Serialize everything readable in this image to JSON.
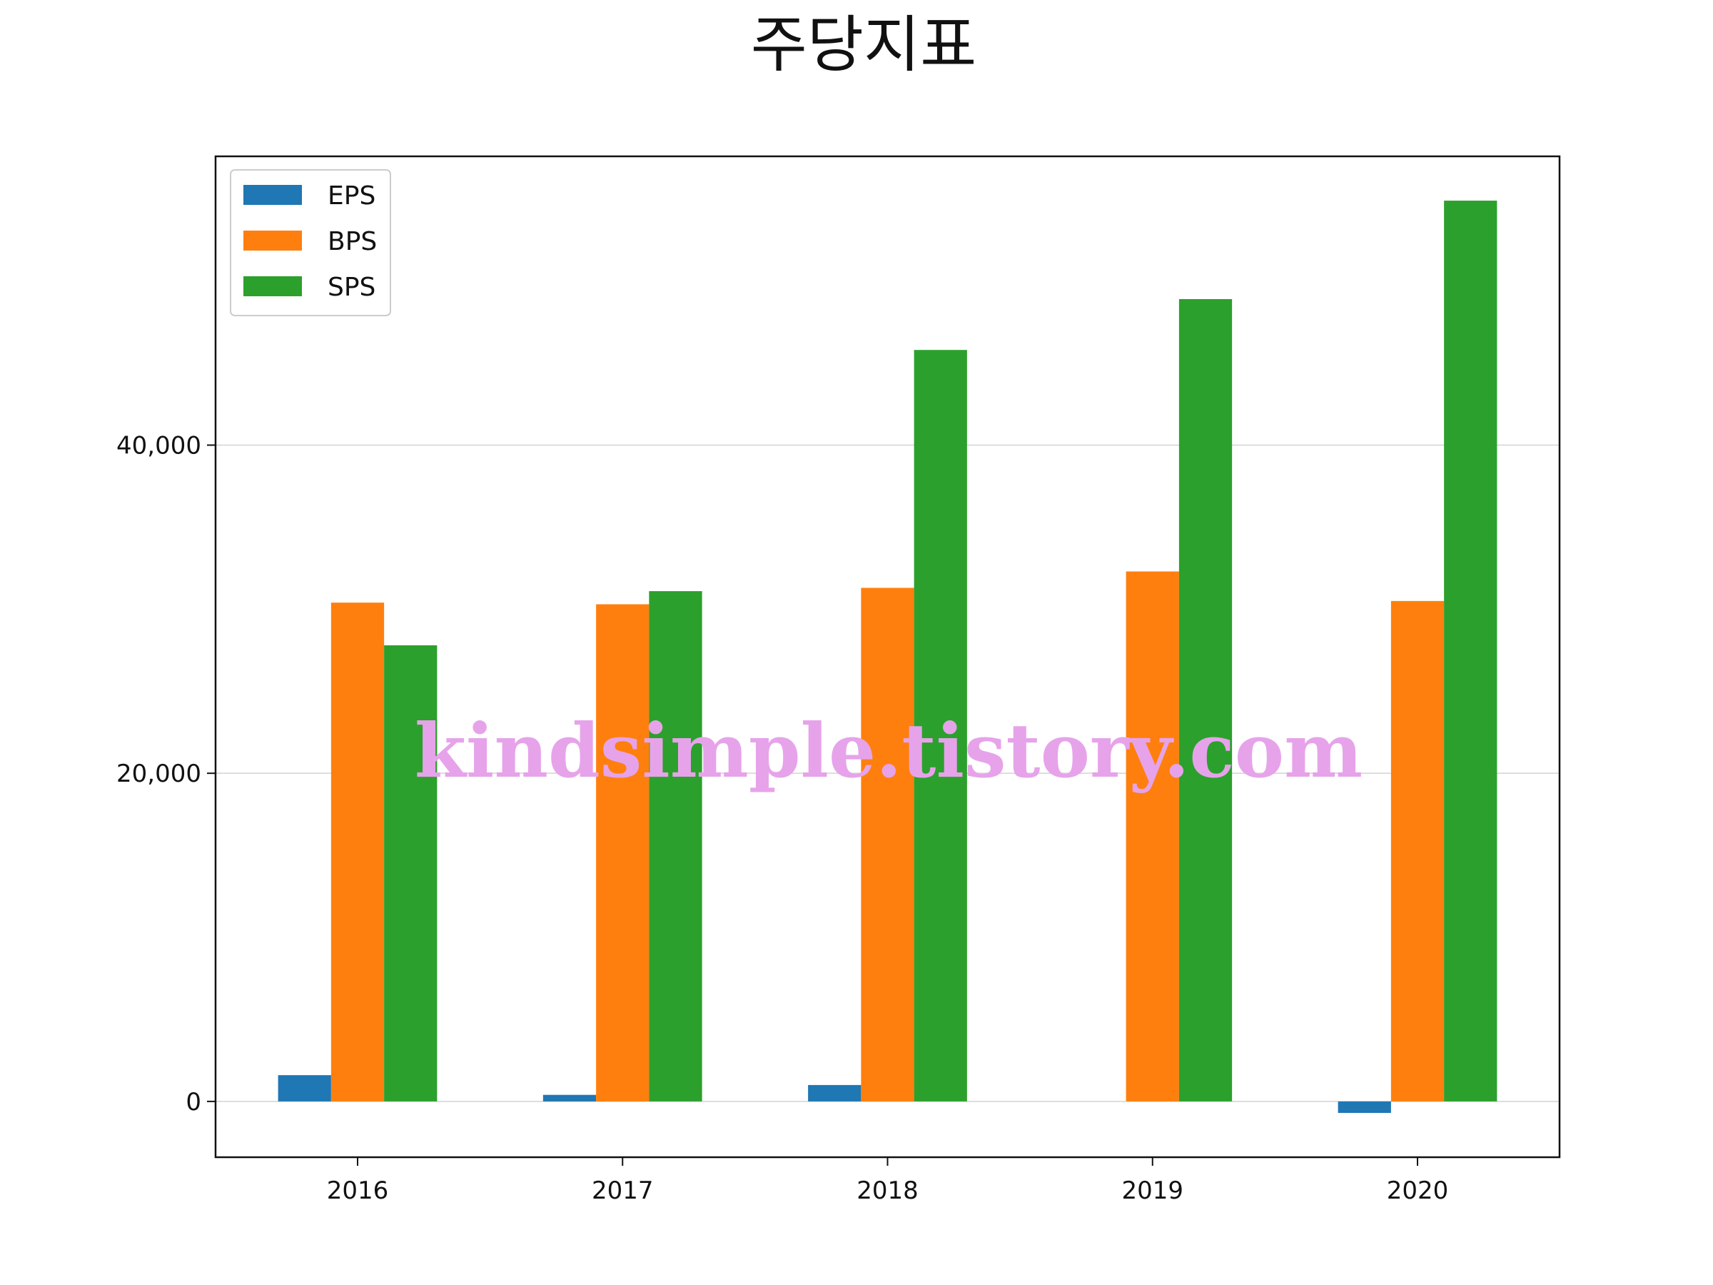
{
  "chart_data": {
    "type": "bar",
    "title": "주당지표",
    "categories": [
      "2016",
      "2017",
      "2018",
      "2019",
      "2020"
    ],
    "series": [
      {
        "name": "EPS",
        "color": "#1f77b4",
        "values": [
          1600,
          400,
          1000,
          0,
          -700
        ]
      },
      {
        "name": "BPS",
        "color": "#ff7f0e",
        "values": [
          30400,
          30300,
          31300,
          32300,
          30500
        ]
      },
      {
        "name": "SPS",
        "color": "#2ca02c",
        "values": [
          27800,
          31100,
          45800,
          48900,
          54900
        ]
      }
    ],
    "y_ticks": [
      {
        "value": 0,
        "label": "0"
      },
      {
        "value": 20000,
        "label": "20,000"
      },
      {
        "value": 40000,
        "label": "40,000"
      }
    ],
    "ylim": [
      -3400,
      57600
    ],
    "xlabel": "",
    "ylabel": "",
    "grid": "horizontal",
    "legend_position": "top-left"
  },
  "watermark": "kindsimple.tistory.com"
}
